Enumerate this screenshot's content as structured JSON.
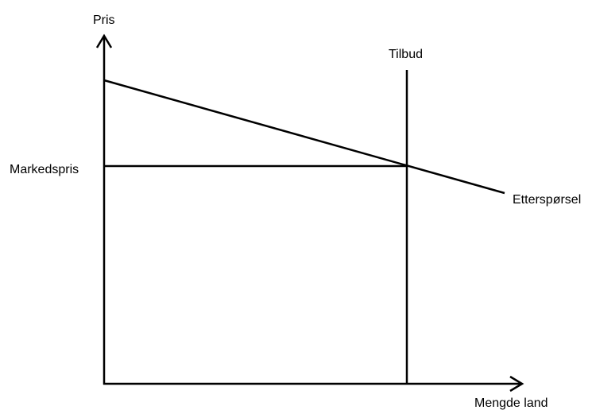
{
  "axes": {
    "y_label": "Pris",
    "x_label": "Mengde land"
  },
  "curves": {
    "supply": "Tilbud",
    "demand": "Etterspørsel"
  },
  "price_level": "Markedspris"
}
